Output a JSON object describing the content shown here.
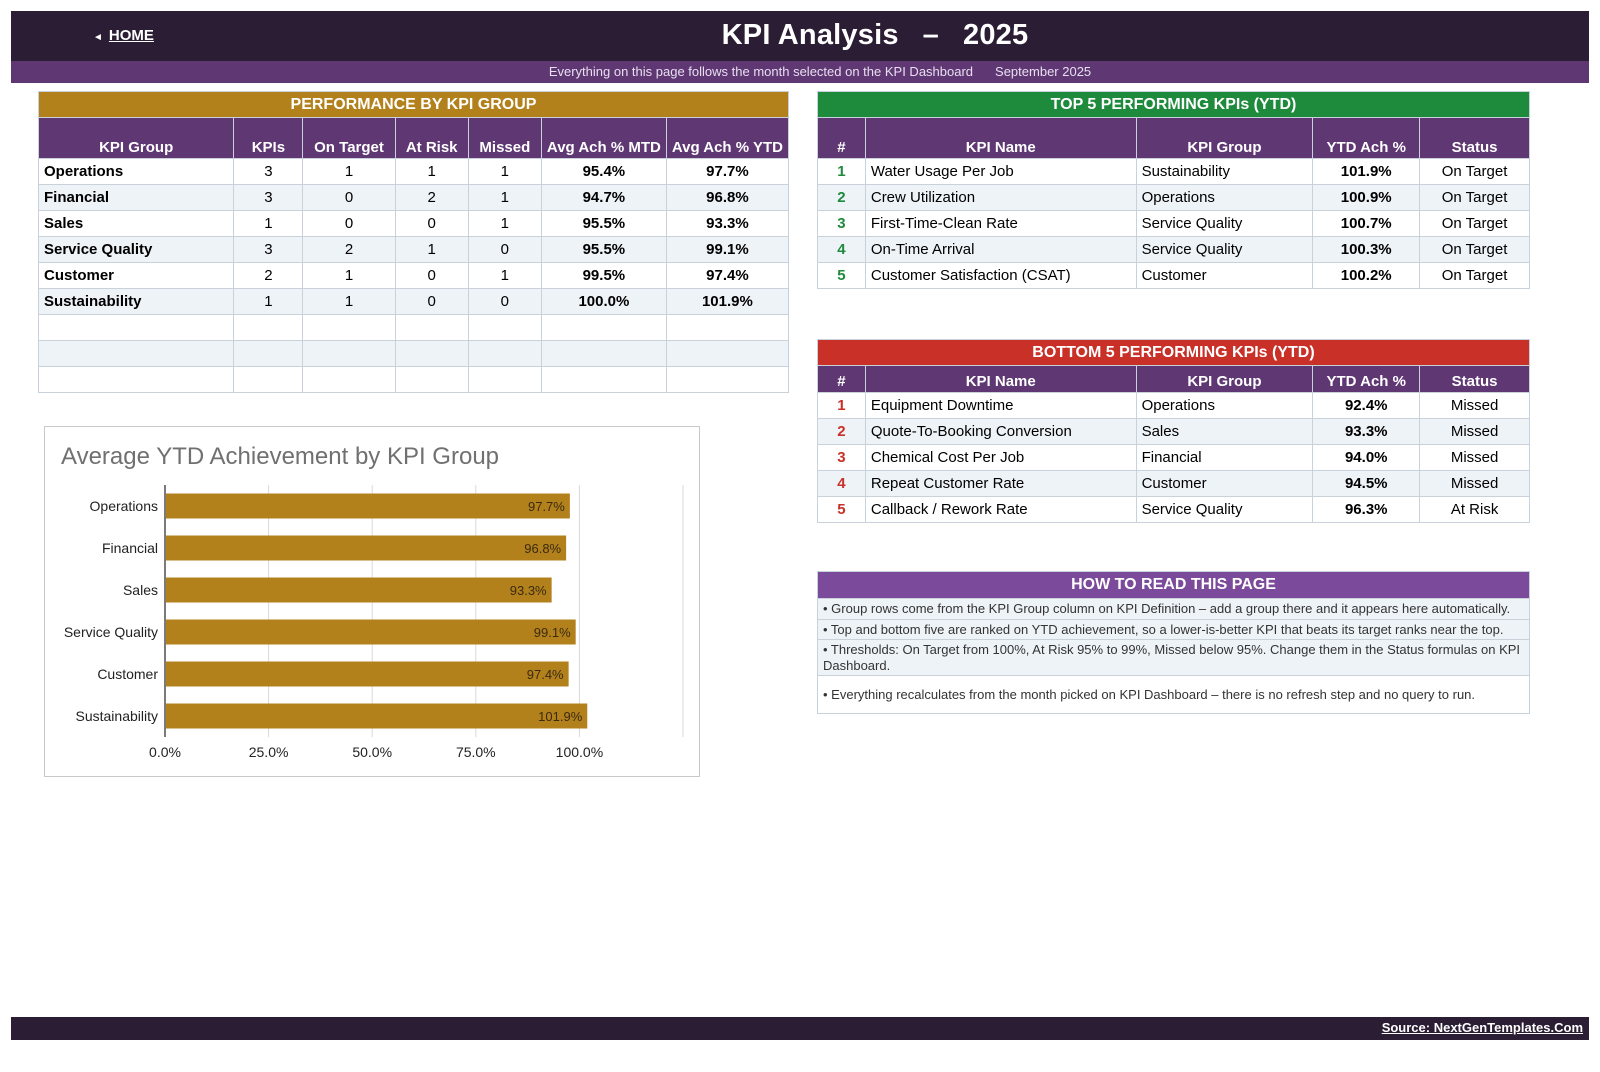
{
  "header": {
    "home_label": "HOME",
    "home_arrow": "◄",
    "title": "KPI Analysis",
    "dash": "–",
    "year": "2025",
    "subtitle": "Everything on this page follows the month selected on the KPI Dashboard",
    "month": "September 2025"
  },
  "colors": {
    "header_bg": "#2b1d33",
    "subheader_bg": "#5e3773",
    "gold": "#b3811c",
    "green": "#1e8a3c",
    "red": "#c83028",
    "purple": "#7b4a9b"
  },
  "performance": {
    "title": "PERFORMANCE BY KPI GROUP",
    "columns": [
      "KPI Group",
      "KPIs",
      "On Target",
      "At Risk",
      "Missed",
      "Avg Ach % MTD",
      "Avg Ach % YTD"
    ],
    "rows": [
      [
        "Operations",
        "3",
        "1",
        "1",
        "1",
        "95.4%",
        "97.7%"
      ],
      [
        "Financial",
        "3",
        "0",
        "2",
        "1",
        "94.7%",
        "96.8%"
      ],
      [
        "Sales",
        "1",
        "0",
        "0",
        "1",
        "95.5%",
        "93.3%"
      ],
      [
        "Service Quality",
        "3",
        "2",
        "1",
        "0",
        "95.5%",
        "99.1%"
      ],
      [
        "Customer",
        "2",
        "1",
        "0",
        "1",
        "99.5%",
        "97.4%"
      ],
      [
        "Sustainability",
        "1",
        "1",
        "0",
        "0",
        "100.0%",
        "101.9%"
      ],
      [
        "",
        "",
        "",
        "",
        "",
        "",
        ""
      ],
      [
        "",
        "",
        "",
        "",
        "",
        "",
        ""
      ],
      [
        "",
        "",
        "",
        "",
        "",
        "",
        ""
      ]
    ]
  },
  "top5": {
    "title": "TOP 5 PERFORMING KPIs  (YTD)",
    "columns": [
      "#",
      "KPI Name",
      "KPI Group",
      "YTD Ach %",
      "Status"
    ],
    "rows": [
      [
        "1",
        "Water Usage Per Job",
        "Sustainability",
        "101.9%",
        "On Target"
      ],
      [
        "2",
        "Crew Utilization",
        "Operations",
        "100.9%",
        "On Target"
      ],
      [
        "3",
        "First-Time-Clean Rate",
        "Service Quality",
        "100.7%",
        "On Target"
      ],
      [
        "4",
        "On-Time Arrival",
        "Service Quality",
        "100.3%",
        "On Target"
      ],
      [
        "5",
        "Customer Satisfaction (CSAT)",
        "Customer",
        "100.2%",
        "On Target"
      ]
    ]
  },
  "bottom5": {
    "title": "BOTTOM 5 PERFORMING KPIs  (YTD)",
    "columns": [
      "#",
      "KPI Name",
      "KPI Group",
      "YTD Ach %",
      "Status"
    ],
    "rows": [
      [
        "1",
        "Equipment Downtime",
        "Operations",
        "92.4%",
        "Missed"
      ],
      [
        "2",
        "Quote-To-Booking Conversion",
        "Sales",
        "93.3%",
        "Missed"
      ],
      [
        "3",
        "Chemical Cost Per Job",
        "Financial",
        "94.0%",
        "Missed"
      ],
      [
        "4",
        "Repeat Customer Rate",
        "Customer",
        "94.5%",
        "Missed"
      ],
      [
        "5",
        "Callback / Rework Rate",
        "Service Quality",
        "96.3%",
        "At Risk"
      ]
    ]
  },
  "howto": {
    "title": "HOW TO READ THIS PAGE",
    "notes": [
      "•  Group rows come from the KPI Group column on KPI Definition – add a group there and it appears here automatically.",
      "•  Top and bottom five are ranked on YTD achievement, so a lower-is-better KPI that beats its target ranks near the top.",
      "•  Thresholds: On Target from 100%, At Risk 95% to 99%, Missed below 95%. Change them in the Status formulas on KPI Dashboard.",
      "•  Everything recalculates from the month picked on KPI Dashboard – there is no refresh step and no query to run."
    ]
  },
  "chart_data": {
    "type": "bar",
    "orientation": "horizontal",
    "title": "Average YTD Achievement by KPI Group",
    "categories": [
      "Operations",
      "Financial",
      "Sales",
      "Service Quality",
      "Customer",
      "Sustainability"
    ],
    "values": [
      97.7,
      96.8,
      93.3,
      99.1,
      97.4,
      101.9
    ],
    "data_labels": [
      "97.7%",
      "96.8%",
      "93.3%",
      "99.1%",
      "97.4%",
      "101.9%"
    ],
    "x_ticks": [
      "0.0%",
      "25.0%",
      "50.0%",
      "75.0%",
      "100.0%"
    ],
    "xlim": [
      0,
      125
    ],
    "grid": true,
    "bar_color": "#b3811c",
    "xlabel": "",
    "ylabel": ""
  },
  "footer": {
    "source": "Source: NextGenTemplates.Com"
  }
}
